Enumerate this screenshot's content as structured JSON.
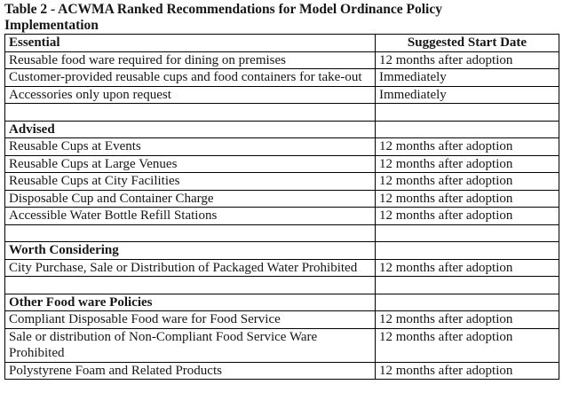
{
  "page": {
    "title": "Table 2 - ACWMA Ranked Recommendations for Model Ordinance Policy Implementation"
  },
  "table": {
    "columns": {
      "policy": "Essential",
      "start_date": "Suggested Start Date"
    },
    "rows": [
      {
        "type": "data",
        "policy": "Reusable food ware required for dining on premises",
        "start_date": "12 months after adoption"
      },
      {
        "type": "data",
        "policy": "Customer-provided reusable cups and food containers for take-out",
        "start_date": "Immediately"
      },
      {
        "type": "data",
        "policy": "Accessories only upon request",
        "start_date": "Immediately"
      },
      {
        "type": "spacer",
        "policy": "",
        "start_date": ""
      },
      {
        "type": "section",
        "policy": "Advised",
        "start_date": ""
      },
      {
        "type": "data",
        "policy": "Reusable Cups at Events",
        "start_date": "12 months after adoption"
      },
      {
        "type": "data",
        "policy": "Reusable Cups at Large Venues",
        "start_date": "12 months after adoption"
      },
      {
        "type": "data",
        "policy": "Reusable Cups at City Facilities",
        "start_date": "12 months after adoption"
      },
      {
        "type": "data",
        "policy": "Disposable Cup and Container Charge",
        "start_date": "12 months after adoption"
      },
      {
        "type": "data",
        "policy": "Accessible Water Bottle Refill Stations",
        "start_date": "12 months after adoption"
      },
      {
        "type": "spacer",
        "policy": "",
        "start_date": ""
      },
      {
        "type": "section",
        "policy": "Worth Considering",
        "start_date": ""
      },
      {
        "type": "data",
        "policy": "City Purchase, Sale or Distribution of Packaged Water Prohibited",
        "start_date": "12 months after adoption"
      },
      {
        "type": "spacer",
        "policy": "",
        "start_date": ""
      },
      {
        "type": "section",
        "policy": "Other Food ware Policies",
        "start_date": ""
      },
      {
        "type": "data",
        "policy": "Compliant Disposable Food ware for Food Service",
        "start_date": "12 months after adoption"
      },
      {
        "type": "data",
        "policy": "Sale or distribution of Non-Compliant Food Service Ware Prohibited",
        "start_date": "12 months after adoption"
      },
      {
        "type": "data",
        "policy": "Polystyrene Foam and Related Products",
        "start_date": "12 months after adoption"
      }
    ]
  }
}
